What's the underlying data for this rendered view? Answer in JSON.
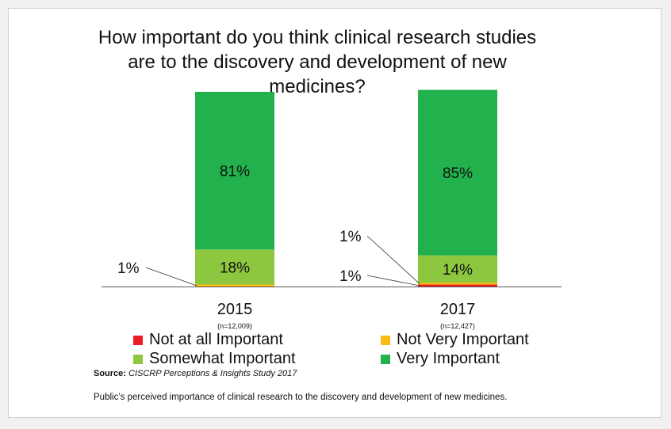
{
  "chart_data": {
    "type": "bar",
    "stacked": true,
    "title": "How important do you think clinical research studies are to the discovery and development of new medicines?",
    "categories": [
      "2015",
      "2017"
    ],
    "sample_sizes": [
      "(n=12,009)",
      "(n=12,427)"
    ],
    "series": [
      {
        "name": "Not at all Important",
        "color": "#ed1c24",
        "values": [
          0,
          1
        ],
        "labels": [
          "",
          "1%"
        ]
      },
      {
        "name": "Not Very Important",
        "color": "#fdb913",
        "values": [
          1,
          1
        ],
        "labels": [
          "1%",
          "1%"
        ]
      },
      {
        "name": "Somewhat Important",
        "color": "#8dc63f",
        "values": [
          18,
          14
        ],
        "labels": [
          "18%",
          "14%"
        ]
      },
      {
        "name": "Very Important",
        "color": "#22b14c",
        "values": [
          81,
          85
        ],
        "labels": [
          "81%",
          "85%"
        ]
      }
    ],
    "ylim": [
      0,
      100
    ],
    "xlabel": "",
    "ylabel": "",
    "grid": false,
    "legend_position": "bottom"
  },
  "legend": {
    "items": [
      {
        "label": "Not at all Important",
        "color": "#ed1c24"
      },
      {
        "label": "Not Very Important",
        "color": "#fdb913"
      },
      {
        "label": "Somewhat Important",
        "color": "#8dc63f"
      },
      {
        "label": "Very Important",
        "color": "#22b14c"
      }
    ]
  },
  "source": {
    "prefix": "Source:",
    "text": "CISCRP Perceptions & Insights Study 2017"
  },
  "caption": "Public’s perceived importance of clinical research to the discovery and development of new medicines."
}
